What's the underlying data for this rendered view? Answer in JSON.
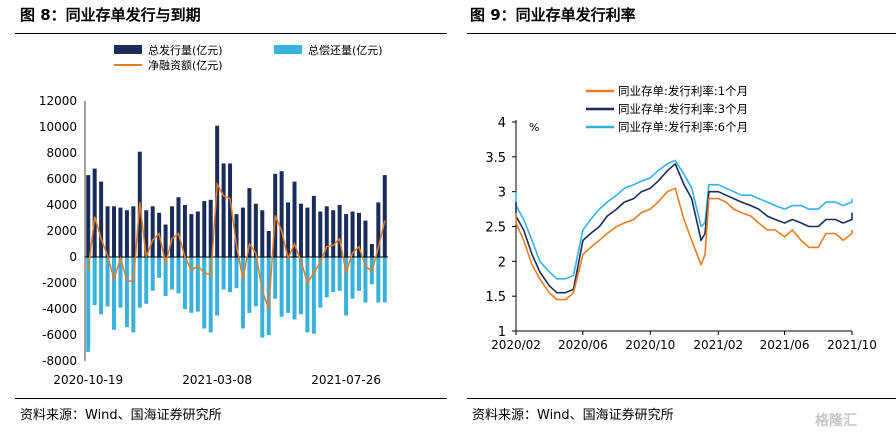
{
  "figure8": {
    "title": "图 8：同业存单发行与到期",
    "source": "资料来源：Wind、国海证券研究所"
  },
  "figure9": {
    "title": "图 9：同业存单发行利率",
    "source": "资料来源：Wind、国海证券研究所"
  },
  "watermark": "格隆汇",
  "colors": {
    "issuance": "#1a2d5a",
    "repayment": "#3ab0dc",
    "net": "#e67e22",
    "rate_1m": "#e67e22",
    "rate_3m": "#1a2d5a",
    "rate_6m": "#35b1e6"
  },
  "chart_data": [
    {
      "type": "bar",
      "title": "同业存单发行与到期",
      "ylim": [
        -8000,
        12000
      ],
      "yticks": [
        "12000",
        "10000",
        "8000",
        "6000",
        "4000",
        "2000",
        "0",
        "-2000",
        "-4000",
        "-6000",
        "-8000"
      ],
      "xticks": [
        "2020-10-19",
        "2021-03-08",
        "2021-07-26"
      ],
      "legend": [
        "总发行量(亿元)",
        "总偿还量(亿元)",
        "净融资额(亿元)"
      ],
      "legend_position": "top",
      "weeks": 47,
      "series": [
        {
          "name": "总发行量(亿元)",
          "values": [
            6300,
            6800,
            5800,
            3900,
            3900,
            3800,
            3600,
            3900,
            8100,
            3600,
            3900,
            3400,
            2500,
            3900,
            4600,
            4000,
            3300,
            3500,
            4300,
            4400,
            10100,
            7200,
            7200,
            3300,
            3800,
            5300,
            4100,
            3600,
            2000,
            6400,
            6600,
            4200,
            5800,
            4100,
            3800,
            4700,
            3500,
            3900,
            3600,
            4000,
            3300,
            3500,
            3400,
            2800,
            1000,
            4200,
            6300
          ]
        },
        {
          "name": "总偿还量(亿元)",
          "values": [
            -7300,
            -3700,
            -4400,
            -3800,
            -5600,
            -3900,
            -5400,
            -5800,
            -3900,
            -3600,
            -2600,
            -1600,
            -3000,
            -2500,
            -2800,
            -4000,
            -4300,
            -4200,
            -5500,
            -5800,
            -4500,
            -2500,
            -2700,
            -2400,
            -5500,
            -4300,
            -3800,
            -6200,
            -6000,
            -3200,
            -4600,
            -4300,
            -4800,
            -4400,
            -5800,
            -5900,
            -3900,
            -3100,
            -2700,
            -2600,
            -4500,
            -3200,
            -2600,
            -3500,
            -2100,
            -3500,
            -3500
          ]
        },
        {
          "name": "净融资额(亿元)",
          "values": [
            -1000,
            3100,
            1400,
            100,
            -1700,
            -100,
            -1800,
            -1900,
            4200,
            0,
            1300,
            1800,
            -500,
            1400,
            1800,
            0,
            -1000,
            -700,
            -1200,
            -1400,
            5600,
            4700,
            4500,
            900,
            -1700,
            1000,
            300,
            -2600,
            -4000,
            3200,
            2000,
            -100,
            1000,
            -300,
            -2000,
            -1200,
            -400,
            800,
            900,
            1400,
            -1200,
            300,
            800,
            -700,
            -1100,
            700,
            2800
          ]
        }
      ]
    },
    {
      "type": "line",
      "title": "同业存单发行利率",
      "unit": "%",
      "ylim": [
        1,
        4
      ],
      "yticks": [
        "4",
        "3.5",
        "3",
        "2.5",
        "2",
        "1.5",
        "1"
      ],
      "xlim": [
        "2020-02",
        "2021-10"
      ],
      "xticks": [
        "2020/02",
        "2020/06",
        "2020/10",
        "2021/02",
        "2021/06",
        "2021/10"
      ],
      "legend_position": "top-left",
      "series": [
        {
          "name": "同业存单:发行利率:1个月",
          "x": [
            "2020-01-01",
            "2020-01-15",
            "2020-02-01",
            "2020-02-15",
            "2020-03-01",
            "2020-03-15",
            "2020-04-01",
            "2020-04-15",
            "2020-05-01",
            "2020-05-15",
            "2020-06-01",
            "2020-06-15",
            "2020-07-01",
            "2020-07-15",
            "2020-08-01",
            "2020-08-15",
            "2020-09-01",
            "2020-09-15",
            "2020-10-01",
            "2020-10-15",
            "2020-11-01",
            "2020-11-15",
            "2020-12-01",
            "2020-12-15",
            "2021-01-01",
            "2021-01-08",
            "2021-01-15",
            "2021-02-01",
            "2021-02-15",
            "2021-03-01",
            "2021-03-15",
            "2021-04-01",
            "2021-04-15",
            "2021-05-01",
            "2021-05-15",
            "2021-06-01",
            "2021-06-15",
            "2021-07-01",
            "2021-07-15",
            "2021-08-01",
            "2021-08-15",
            "2021-09-01",
            "2021-09-15",
            "2021-10-01",
            "2021-10-15"
          ],
          "values": [
            2.7,
            2.65,
            2.55,
            2.3,
            1.95,
            1.75,
            1.55,
            1.45,
            1.45,
            1.55,
            2.1,
            2.2,
            2.3,
            2.4,
            2.5,
            2.55,
            2.6,
            2.7,
            2.75,
            2.85,
            3.0,
            3.05,
            2.6,
            2.3,
            1.95,
            2.1,
            2.9,
            2.9,
            2.85,
            2.75,
            2.7,
            2.65,
            2.55,
            2.45,
            2.45,
            2.35,
            2.45,
            2.3,
            2.2,
            2.2,
            2.4,
            2.4,
            2.3,
            2.4,
            2.45
          ]
        },
        {
          "name": "同业存单:发行利率:3个月",
          "x": [
            "2020-01-01",
            "2020-01-15",
            "2020-02-01",
            "2020-02-15",
            "2020-03-01",
            "2020-03-15",
            "2020-04-01",
            "2020-04-15",
            "2020-05-01",
            "2020-05-15",
            "2020-06-01",
            "2020-06-15",
            "2020-07-01",
            "2020-07-15",
            "2020-08-01",
            "2020-08-15",
            "2020-09-01",
            "2020-09-15",
            "2020-10-01",
            "2020-10-15",
            "2020-11-01",
            "2020-11-15",
            "2020-12-01",
            "2020-12-15",
            "2021-01-01",
            "2021-01-08",
            "2021-01-15",
            "2021-02-01",
            "2021-02-15",
            "2021-03-01",
            "2021-03-15",
            "2021-04-01",
            "2021-04-15",
            "2021-05-01",
            "2021-05-15",
            "2021-06-01",
            "2021-06-15",
            "2021-07-01",
            "2021-07-15",
            "2021-08-01",
            "2021-08-15",
            "2021-09-01",
            "2021-09-15",
            "2021-10-01",
            "2021-10-15"
          ],
          "values": [
            2.85,
            2.75,
            2.65,
            2.45,
            2.1,
            1.85,
            1.65,
            1.55,
            1.55,
            1.6,
            2.3,
            2.4,
            2.5,
            2.65,
            2.75,
            2.85,
            2.9,
            3.0,
            3.05,
            3.15,
            3.3,
            3.4,
            3.1,
            2.9,
            2.3,
            2.4,
            3.0,
            3.0,
            2.95,
            2.9,
            2.85,
            2.8,
            2.75,
            2.65,
            2.6,
            2.55,
            2.6,
            2.55,
            2.5,
            2.5,
            2.6,
            2.6,
            2.55,
            2.6,
            2.7
          ]
        },
        {
          "name": "同业存单:发行利率:6个月",
          "x": [
            "2020-01-01",
            "2020-01-15",
            "2020-02-01",
            "2020-02-15",
            "2020-03-01",
            "2020-03-15",
            "2020-04-01",
            "2020-04-15",
            "2020-05-01",
            "2020-05-15",
            "2020-06-01",
            "2020-06-15",
            "2020-07-01",
            "2020-07-15",
            "2020-08-01",
            "2020-08-15",
            "2020-09-01",
            "2020-09-15",
            "2020-10-01",
            "2020-10-15",
            "2020-11-01",
            "2020-11-15",
            "2020-12-01",
            "2020-12-15",
            "2021-01-01",
            "2021-01-08",
            "2021-01-15",
            "2021-02-01",
            "2021-02-15",
            "2021-03-01",
            "2021-03-15",
            "2021-04-01",
            "2021-04-15",
            "2021-05-01",
            "2021-05-15",
            "2021-06-01",
            "2021-06-15",
            "2021-07-01",
            "2021-07-15",
            "2021-08-01",
            "2021-08-15",
            "2021-09-01",
            "2021-09-15",
            "2021-10-01",
            "2021-10-15"
          ],
          "values": [
            3.0,
            2.9,
            2.8,
            2.6,
            2.3,
            2.0,
            1.85,
            1.75,
            1.75,
            1.8,
            2.45,
            2.6,
            2.75,
            2.85,
            2.95,
            3.05,
            3.1,
            3.15,
            3.2,
            3.3,
            3.4,
            3.45,
            3.25,
            3.05,
            2.5,
            2.55,
            3.1,
            3.1,
            3.05,
            3.0,
            2.95,
            2.95,
            2.9,
            2.85,
            2.8,
            2.75,
            2.8,
            2.8,
            2.75,
            2.75,
            2.85,
            2.85,
            2.8,
            2.85,
            2.9
          ]
        }
      ]
    }
  ]
}
